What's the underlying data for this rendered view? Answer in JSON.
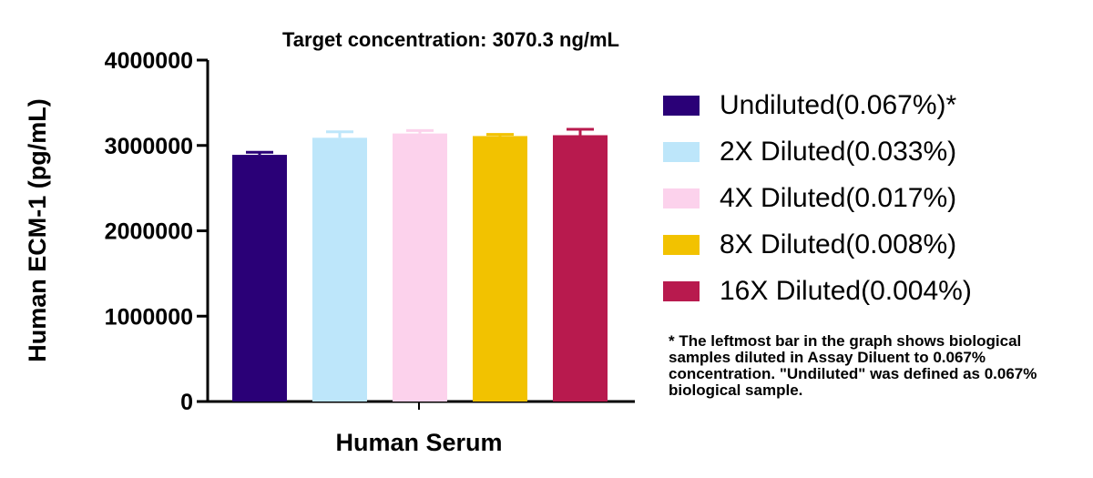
{
  "chart_data": {
    "type": "bar",
    "title": "Target concentration: 3070.3 ng/mL",
    "ylabel": "Human ECM-1 (pg/mL)",
    "xlabel": "Human Serum",
    "ylim": [
      0,
      4000000
    ],
    "yticks": [
      "0",
      "1000000",
      "2000000",
      "3000000",
      "4000000"
    ],
    "series": [
      {
        "name": "Undiluted(0.067%)*",
        "value": 2890000,
        "error": 30000,
        "color": "#2a0077"
      },
      {
        "name": "2X Diluted(0.033%)",
        "value": 3090000,
        "error": 70000,
        "color": "#bde6fa"
      },
      {
        "name": "4X Diluted(0.017%)",
        "value": 3140000,
        "error": 35000,
        "color": "#fcd2ec"
      },
      {
        "name": "8X Diluted(0.008%)",
        "value": 3110000,
        "error": 20000,
        "color": "#f2c200"
      },
      {
        "name": "16X Diluted(0.004%)",
        "value": 3120000,
        "error": 70000,
        "color": "#b81a4e"
      }
    ],
    "legend_position": "right",
    "grid": false
  },
  "footnote": "* The leftmost bar in the graph shows biological samples diluted in Assay Diluent to 0.067% concentration. \"Undiluted\" was defined as 0.067% biological sample."
}
